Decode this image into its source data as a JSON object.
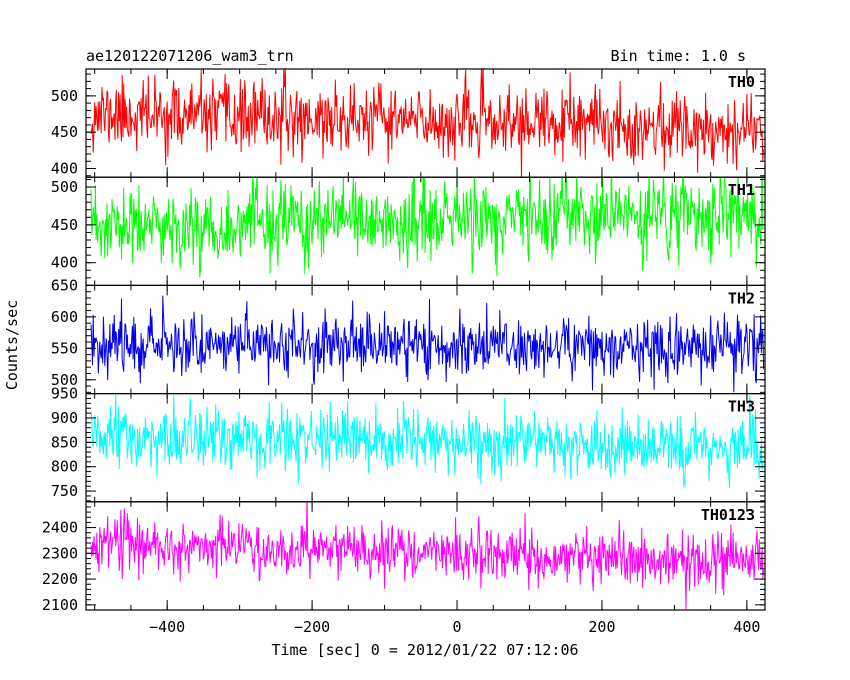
{
  "chart_data": {
    "type": "line",
    "title": "ae120122071206_wam3_trn",
    "bin_label": "Bin time: 1.0 s",
    "xlabel": "Time [sec] 0 = 2012/01/22 07:12:06",
    "ylabel": "Counts/sec",
    "xlim": [
      -512,
      425
    ],
    "xrange_data": [
      -505,
      423
    ],
    "bin_seconds": 1.0,
    "x_major_ticks": [
      -400,
      -200,
      0,
      200,
      400
    ],
    "x_tick_labels": [
      "−400",
      "−200",
      "0",
      "200",
      "400"
    ],
    "x_minor_step": 50,
    "grid": false,
    "legend": "none",
    "panels": [
      {
        "name": "TH0",
        "color": "#ff0000",
        "ylim": [
          388,
          537
        ],
        "yticks": [
          400,
          450,
          500
        ],
        "ytick_labels": [
          "400",
          "450",
          "500"
        ],
        "y_minor_step": 10,
        "trend_start": 475,
        "trend_end": 455,
        "noise_sd": 24,
        "seed": 11
      },
      {
        "name": "TH1",
        "color": "#00ff00",
        "ylim": [
          370,
          513
        ],
        "yticks": [
          400,
          450,
          500
        ],
        "ytick_labels": [
          "400",
          "450",
          "500"
        ],
        "y_minor_step": 10,
        "trend_start": 445,
        "trend_end": 465,
        "noise_sd": 26,
        "seed": 23
      },
      {
        "name": "TH2",
        "color": "#0000ee",
        "ylim": [
          478,
          650
        ],
        "yticks": [
          500,
          550,
          600,
          650
        ],
        "ytick_labels": [
          "500",
          "550",
          "600",
          "650"
        ],
        "y_minor_step": 10,
        "trend_start": 560,
        "trend_end": 550,
        "noise_sd": 24,
        "seed": 37
      },
      {
        "name": "TH3",
        "color": "#00ffff",
        "ylim": [
          728,
          950
        ],
        "yticks": [
          750,
          800,
          850,
          900,
          950
        ],
        "ytick_labels": [
          "750",
          "800",
          "850",
          "900",
          "950"
        ],
        "y_minor_step": 10,
        "trend_start": 858,
        "trend_end": 840,
        "noise_sd": 32,
        "seed": 51
      },
      {
        "name": "TH0123",
        "color": "#ff00ff",
        "ylim": [
          2080,
          2500
        ],
        "yticks": [
          2100,
          2200,
          2300,
          2400
        ],
        "ytick_labels": [
          "2100",
          "2200",
          "2300",
          "2400"
        ],
        "y_minor_step": 20,
        "trend_start": 2340,
        "trend_end": 2265,
        "noise_sd": 52,
        "seed": 67
      }
    ]
  }
}
